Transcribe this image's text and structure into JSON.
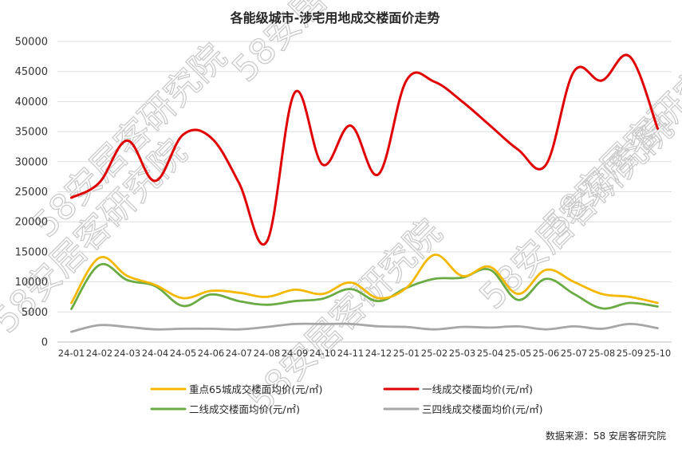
{
  "chart_data": {
    "type": "line",
    "title": "各能级城市-涉宅用地成交楼面价走势",
    "x": [
      "24-01",
      "24-02",
      "24-03",
      "24-04",
      "24-05",
      "24-06",
      "24-07",
      "24-08",
      "24-09",
      "24-10",
      "24-11",
      "24-12",
      "25-01",
      "25-02",
      "25-03",
      "25-04",
      "25-05",
      "25-06",
      "25-07",
      "25-08",
      "25-09",
      "25-10"
    ],
    "ylim": [
      0,
      50000
    ],
    "yticks": [
      0,
      5000,
      10000,
      15000,
      20000,
      25000,
      30000,
      35000,
      40000,
      45000,
      50000
    ],
    "grid": true,
    "legend_position": "bottom",
    "series": [
      {
        "name": "重点65城成交楼面均价(元/㎡)",
        "color": "#f5b800",
        "values": [
          6500,
          14000,
          11000,
          9500,
          7300,
          8500,
          8200,
          7500,
          8700,
          8000,
          9900,
          7300,
          9000,
          14500,
          11000,
          12500,
          8000,
          12000,
          10000,
          8000,
          7500,
          6500
        ]
      },
      {
        "name": "一线成交楼面均价(元/㎡)",
        "color": "#e00000",
        "values": [
          24000,
          26500,
          33500,
          26800,
          34500,
          34000,
          26500,
          16700,
          41500,
          29500,
          36000,
          27900,
          43500,
          43300,
          40000,
          36000,
          32000,
          29500,
          45000,
          43500,
          47500,
          35500
        ]
      },
      {
        "name": "二线成交楼面均价(元/㎡)",
        "color": "#6aab44",
        "values": [
          5500,
          12800,
          10300,
          9300,
          6000,
          7900,
          6800,
          6200,
          6800,
          7200,
          8800,
          6800,
          9000,
          10500,
          10700,
          12000,
          7000,
          10500,
          8000,
          5600,
          6500,
          5900
        ]
      },
      {
        "name": "三四线成交楼面均价(元/㎡)",
        "color": "#a6a6a6",
        "values": [
          1700,
          2800,
          2500,
          2100,
          2200,
          2200,
          2100,
          2500,
          3000,
          3000,
          3000,
          2600,
          2500,
          2100,
          2500,
          2400,
          2600,
          2100,
          2600,
          2200,
          3000,
          2300
        ]
      }
    ],
    "source": "数据来源：58 安居客研究院"
  },
  "watermark": "58安居客研究院"
}
